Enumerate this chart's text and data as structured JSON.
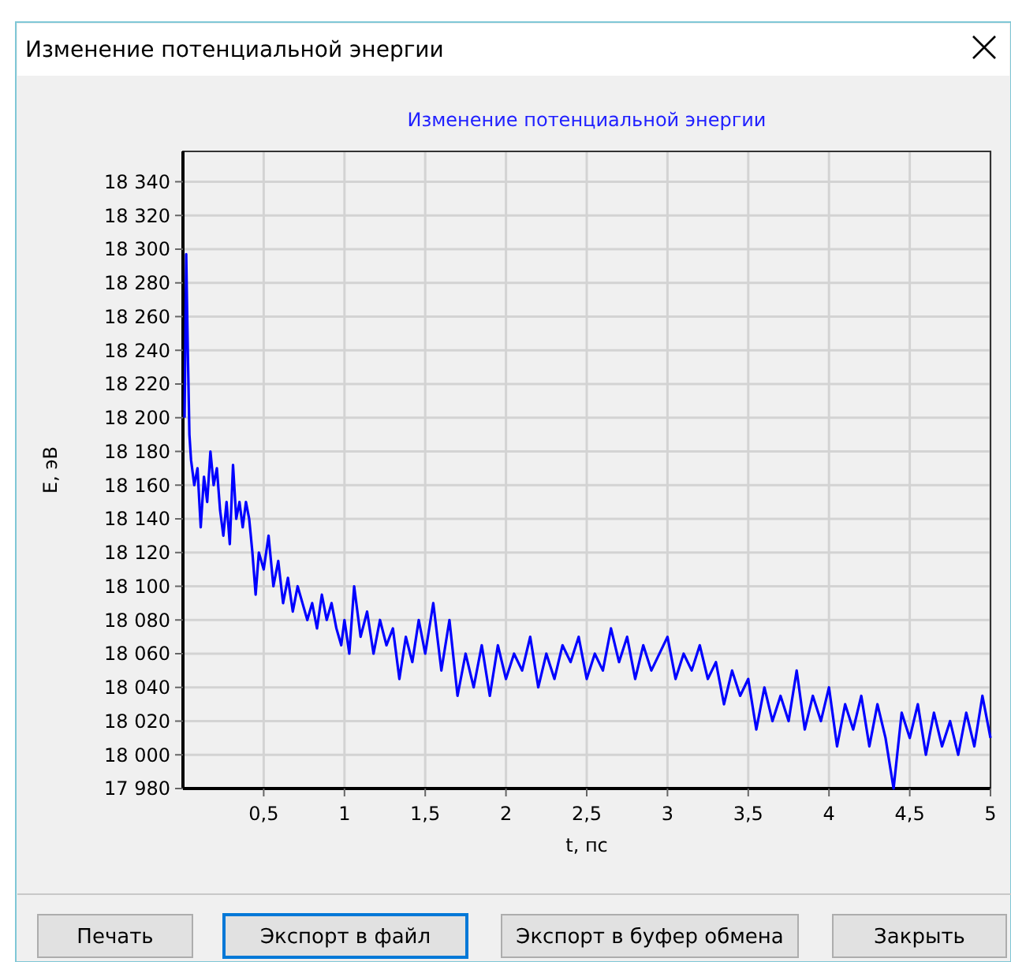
{
  "chart_data": {
    "type": "line",
    "title": "Изменение потенциальной энергии",
    "xlabel": "t, пс",
    "ylabel": "E, эВ",
    "annotations": [
      "Изменение потенциальной энергии",
      "Печать",
      "Экспорт в файл",
      "Экспорт в буфер обмена",
      "Закрыть"
    ],
    "x": [
      0.01,
      0.02,
      0.03,
      0.04,
      0.05,
      0.07,
      0.09,
      0.11,
      0.13,
      0.15,
      0.17,
      0.19,
      0.21,
      0.23,
      0.25,
      0.27,
      0.29,
      0.31,
      0.33,
      0.35,
      0.37,
      0.39,
      0.41,
      0.43,
      0.45,
      0.47,
      0.5,
      0.53,
      0.56,
      0.59,
      0.62,
      0.65,
      0.68,
      0.71,
      0.74,
      0.77,
      0.8,
      0.83,
      0.86,
      0.89,
      0.92,
      0.95,
      0.98,
      1.0,
      1.03,
      1.06,
      1.1,
      1.14,
      1.18,
      1.22,
      1.26,
      1.3,
      1.34,
      1.38,
      1.42,
      1.46,
      1.5,
      1.55,
      1.6,
      1.65,
      1.7,
      1.75,
      1.8,
      1.85,
      1.9,
      1.95,
      2.0,
      2.05,
      2.1,
      2.15,
      2.2,
      2.25,
      2.3,
      2.35,
      2.4,
      2.45,
      2.5,
      2.55,
      2.6,
      2.65,
      2.7,
      2.75,
      2.8,
      2.85,
      2.9,
      3.0,
      3.05,
      3.1,
      3.15,
      3.2,
      3.25,
      3.3,
      3.35,
      3.4,
      3.45,
      3.5,
      3.55,
      3.6,
      3.65,
      3.7,
      3.75,
      3.8,
      3.85,
      3.9,
      3.95,
      4.0,
      4.05,
      4.1,
      4.15,
      4.2,
      4.25,
      4.3,
      4.35,
      4.4,
      4.45,
      4.5,
      4.55,
      4.6,
      4.65,
      4.7,
      4.75,
      4.8,
      4.85,
      4.9,
      4.95,
      5.0
    ],
    "series": [
      {
        "color": "#0000ff",
        "values": [
          18200,
          18297,
          18240,
          18190,
          18175,
          18160,
          18170,
          18135,
          18165,
          18150,
          18180,
          18160,
          18170,
          18145,
          18130,
          18150,
          18125,
          18172,
          18140,
          18150,
          18135,
          18150,
          18140,
          18120,
          18095,
          18120,
          18110,
          18130,
          18100,
          18115,
          18090,
          18105,
          18085,
          18100,
          18090,
          18080,
          18090,
          18075,
          18095,
          18080,
          18090,
          18075,
          18065,
          18080,
          18060,
          18100,
          18070,
          18085,
          18060,
          18080,
          18065,
          18075,
          18045,
          18070,
          18055,
          18080,
          18060,
          18090,
          18050,
          18080,
          18035,
          18060,
          18040,
          18065,
          18035,
          18065,
          18045,
          18060,
          18050,
          18070,
          18040,
          18060,
          18045,
          18065,
          18055,
          18070,
          18045,
          18060,
          18050,
          18075,
          18055,
          18070,
          18045,
          18065,
          18050,
          18070,
          18045,
          18060,
          18050,
          18065,
          18045,
          18055,
          18030,
          18050,
          18035,
          18045,
          18015,
          18040,
          18020,
          18035,
          18020,
          18050,
          18015,
          18035,
          18020,
          18040,
          18005,
          18030,
          18015,
          18035,
          18005,
          18030,
          18010,
          17980,
          18025,
          18010,
          18030,
          18000,
          18025,
          18005,
          18020,
          18000,
          18025,
          18005,
          18035,
          18010
        ]
      }
    ],
    "xlim": [
      0,
      5
    ],
    "xticks": [
      {
        "value": 0.5,
        "label": "0,5"
      },
      1,
      {
        "value": 1.5,
        "label": "1,5"
      },
      2,
      {
        "value": 2.5,
        "label": "2,5"
      },
      3,
      {
        "value": 3.5,
        "label": "3,5"
      },
      4,
      {
        "value": 4.5,
        "label": "4,5"
      },
      5
    ],
    "ylim": [
      17980,
      18358
    ],
    "yticks": [
      {
        "value": 17980,
        "label": "17 980"
      },
      {
        "value": 18000,
        "label": "18 000"
      },
      {
        "value": 18020,
        "label": "18 020"
      },
      {
        "value": 18040,
        "label": "18 040"
      },
      {
        "value": 18060,
        "label": "18 060"
      },
      {
        "value": 18080,
        "label": "18 080"
      },
      {
        "value": 18100,
        "label": "18 100"
      },
      {
        "value": 18120,
        "label": "18 120"
      },
      {
        "value": 18140,
        "label": "18 140"
      },
      {
        "value": 18160,
        "label": "18 160"
      },
      {
        "value": 18180,
        "label": "18 180"
      },
      {
        "value": 18200,
        "label": "18 200"
      },
      {
        "value": 18220,
        "label": "18 220"
      },
      {
        "value": 18240,
        "label": "18 240"
      },
      {
        "value": 18260,
        "label": "18 260"
      },
      {
        "value": 18280,
        "label": "18 280"
      },
      {
        "value": 18300,
        "label": "18 300"
      },
      {
        "value": 18320,
        "label": "18 320"
      },
      {
        "value": 18340,
        "label": "18 340"
      }
    ],
    "grid": true,
    "marker": "none",
    "line_style": "solid"
  }
}
